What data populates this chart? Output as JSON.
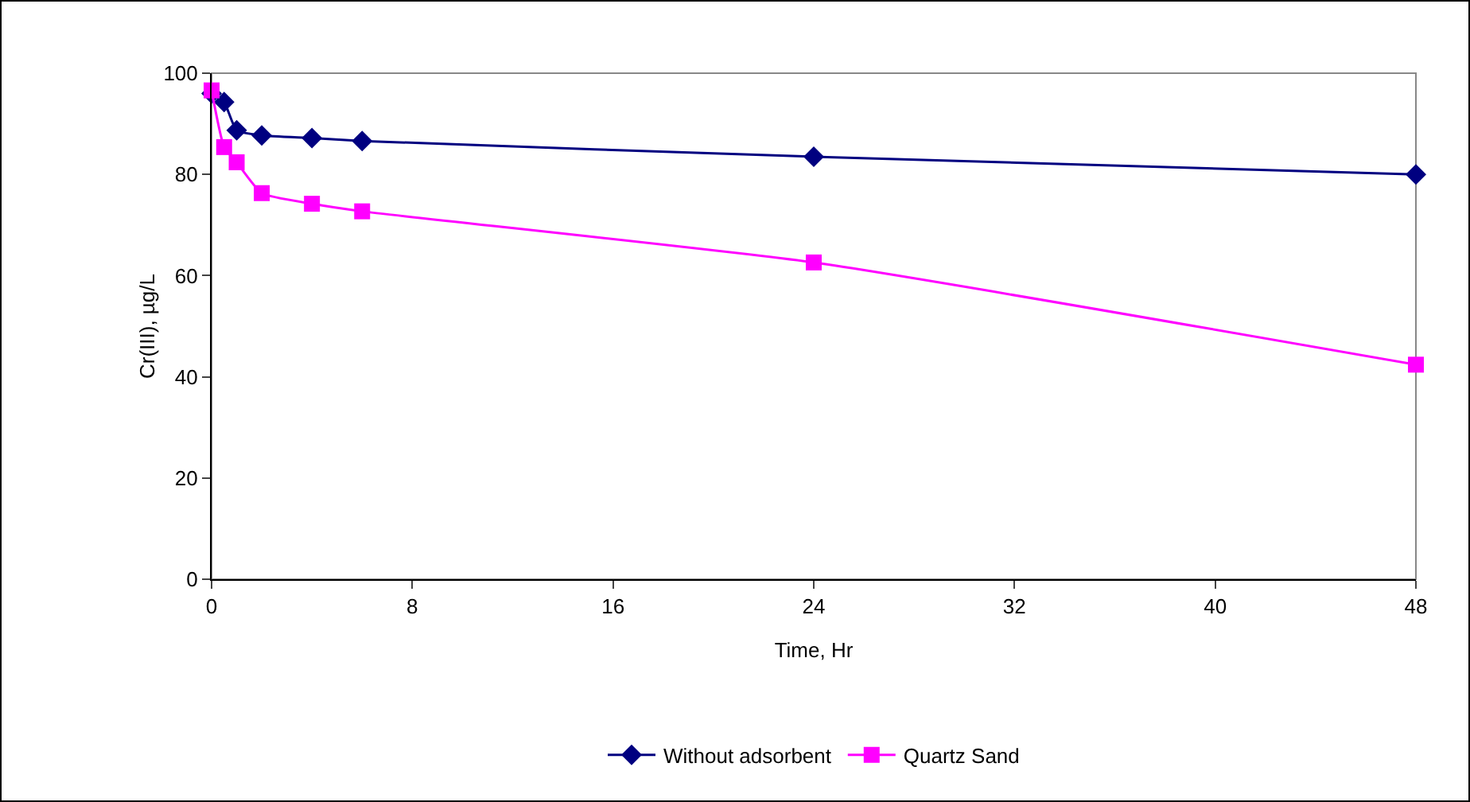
{
  "chart_data": {
    "type": "line",
    "xlabel": "Time, Hr",
    "ylabel": "Cr(III), µg/L",
    "xlim": [
      0,
      48
    ],
    "xticks": [
      0,
      8,
      16,
      24,
      32,
      40,
      48
    ],
    "ylim": [
      0,
      100
    ],
    "yticks": [
      0,
      20,
      40,
      60,
      80,
      100
    ],
    "x": [
      0,
      0.5,
      1,
      2,
      4,
      6,
      24,
      48
    ],
    "series": [
      {
        "name": "Without adsorbent",
        "color": "#000080",
        "marker": "diamond",
        "values": [
          96,
          94.3,
          88.7,
          87.7,
          87.2,
          86.6,
          83.5,
          80
        ]
      },
      {
        "name": "Quartz Sand",
        "color": "#ff00ff",
        "marker": "square",
        "values": [
          96.6,
          85.4,
          82.4,
          76.3,
          74.2,
          72.7,
          62.6,
          42.4
        ]
      }
    ],
    "grid": false,
    "legend": "bottom",
    "line_style": "solid"
  }
}
